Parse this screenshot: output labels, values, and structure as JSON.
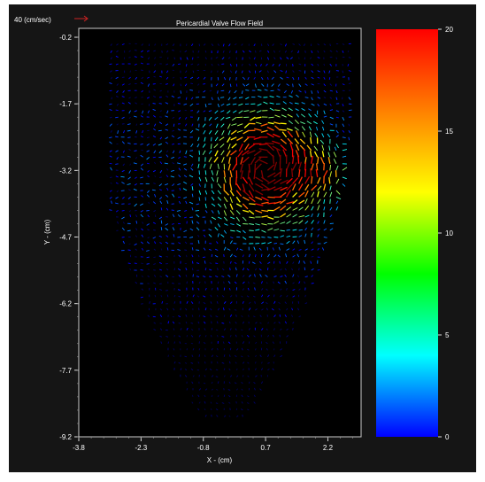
{
  "chart_data": {
    "type": "vector-field",
    "title": "Pericardial Valve Flow Field",
    "xlabel": "X - (cm)",
    "ylabel": "Y - (cm)",
    "xlim": [
      -3.8,
      3.0
    ],
    "ylim": [
      -9.2,
      0.0
    ],
    "x_ticks": [
      "-3.8",
      "-2.3",
      "-0.8",
      "0.7",
      "2.2"
    ],
    "y_ticks": [
      "-0.2",
      "-1.7",
      "-3.2",
      "-4.7",
      "-6.2",
      "-7.7",
      "-9.2"
    ],
    "reference_vector": {
      "label": "40 (cm/sec)",
      "magnitude": 40
    },
    "colorbar": {
      "min": 0,
      "max": 20,
      "ticks": [
        "20",
        "15",
        "10",
        "5",
        "0"
      ],
      "colors": [
        "#ff0000",
        "#ff8000",
        "#ffff00",
        "#00ff00",
        "#00ffff",
        "#0000ff"
      ]
    },
    "jet_region": {
      "x_range": [
        -0.6,
        2.0
      ],
      "y_range": [
        -4.5,
        -1.8
      ],
      "peak_speed_cm_s": 20
    },
    "grid": false
  }
}
